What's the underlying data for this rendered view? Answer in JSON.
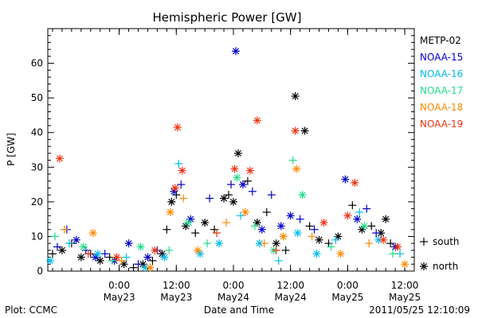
{
  "chart_data": {
    "type": "scatter",
    "title": "Hemispheric Power [GW]",
    "xlabel": "Date and Time",
    "ylabel": "P [GW]",
    "ylim": [
      0,
      70
    ],
    "yticks": [
      0,
      10,
      20,
      30,
      40,
      50,
      60
    ],
    "xlim": [
      "2011-05-22 09:00",
      "2011-05-25 14:00"
    ],
    "xticks": [
      {
        "at": "2011-05-23 00:00",
        "line1": "0:00",
        "line2": "May23"
      },
      {
        "at": "2011-05-23 12:00",
        "line1": "12:00",
        "line2": "May23"
      },
      {
        "at": "2011-05-24 00:00",
        "line1": "0:00",
        "line2": "May24"
      },
      {
        "at": "2011-05-24 12:00",
        "line1": "12:00",
        "line2": "May24"
      },
      {
        "at": "2011-05-25 00:00",
        "line1": "0:00",
        "line2": "May25"
      },
      {
        "at": "2011-05-25 12:00",
        "line1": "12:00",
        "line2": "May25"
      }
    ],
    "grid": false,
    "legend_position": "right",
    "hemisphere_markers": [
      {
        "symbol": "+",
        "label": "south"
      },
      {
        "symbol": "*",
        "label": "north"
      }
    ],
    "series": [
      {
        "name": "METP-02",
        "color": "#000000",
        "points": [
          [
            "2011-05-22 10:00",
            5,
            "+"
          ],
          [
            "2011-05-22 12:00",
            6,
            "*"
          ],
          [
            "2011-05-22 14:00",
            8,
            "+"
          ],
          [
            "2011-05-22 16:00",
            4,
            "*"
          ],
          [
            "2011-05-22 18:00",
            5,
            "+"
          ],
          [
            "2011-05-22 20:00",
            3,
            "*"
          ],
          [
            "2011-05-22 22:00",
            4,
            "+"
          ],
          [
            "2011-05-23 01:00",
            2,
            "*"
          ],
          [
            "2011-05-23 03:00",
            1,
            "+"
          ],
          [
            "2011-05-23 05:00",
            2,
            "*"
          ],
          [
            "2011-05-23 07:00",
            3,
            "+"
          ],
          [
            "2011-05-23 09:00",
            5,
            "*"
          ],
          [
            "2011-05-23 10:00",
            12,
            "+"
          ],
          [
            "2011-05-23 11:00",
            20,
            "*"
          ],
          [
            "2011-05-23 12:00",
            22,
            "+"
          ],
          [
            "2011-05-23 14:00",
            13,
            "*"
          ],
          [
            "2011-05-23 16:00",
            11,
            "+"
          ],
          [
            "2011-05-23 18:00",
            14,
            "*"
          ],
          [
            "2011-05-23 20:00",
            12,
            "+"
          ],
          [
            "2011-05-23 22:00",
            21,
            "*"
          ],
          [
            "2011-05-23 23:00",
            22,
            "+"
          ],
          [
            "2011-05-24 00:00",
            20,
            "*"
          ],
          [
            "2011-05-24 01:00",
            34,
            "*"
          ],
          [
            "2011-05-24 03:00",
            26,
            "+"
          ],
          [
            "2011-05-24 05:00",
            14,
            "*"
          ],
          [
            "2011-05-24 07:00",
            17,
            "+"
          ],
          [
            "2011-05-24 09:00",
            8,
            "*"
          ],
          [
            "2011-05-24 11:00",
            6,
            "+"
          ],
          [
            "2011-05-24 13:00",
            50.5,
            "*"
          ],
          [
            "2011-05-24 15:00",
            40.5,
            "*"
          ],
          [
            "2011-05-24 16:00",
            13,
            "+"
          ],
          [
            "2011-05-24 18:00",
            9,
            "*"
          ],
          [
            "2011-05-24 20:00",
            8,
            "+"
          ],
          [
            "2011-05-24 22:00",
            10,
            "*"
          ],
          [
            "2011-05-25 01:00",
            19,
            "+"
          ],
          [
            "2011-05-25 03:00",
            12,
            "*"
          ],
          [
            "2011-05-25 05:00",
            13,
            "+"
          ],
          [
            "2011-05-25 07:00",
            11,
            "*"
          ],
          [
            "2011-05-25 08:00",
            15,
            "*"
          ],
          [
            "2011-05-25 09:00",
            8,
            "+"
          ]
        ]
      },
      {
        "name": "NOAA-15",
        "color": "#0000cc",
        "points": [
          [
            "2011-05-22 11:00",
            7,
            "+"
          ],
          [
            "2011-05-22 13:00",
            12,
            "+"
          ],
          [
            "2011-05-22 15:00",
            9,
            "*"
          ],
          [
            "2011-05-22 17:00",
            6,
            "+"
          ],
          [
            "2011-05-22 19:00",
            4,
            "*"
          ],
          [
            "2011-05-22 21:00",
            5,
            "+"
          ],
          [
            "2011-05-22 23:00",
            3,
            "*"
          ],
          [
            "2011-05-23 02:00",
            8,
            "*"
          ],
          [
            "2011-05-23 04:00",
            2,
            "+"
          ],
          [
            "2011-05-23 06:00",
            4,
            "*"
          ],
          [
            "2011-05-23 08:00",
            6,
            "+"
          ],
          [
            "2011-05-23 11:30",
            23,
            "*"
          ],
          [
            "2011-05-23 13:00",
            25,
            "+"
          ],
          [
            "2011-05-23 15:00",
            15,
            "*"
          ],
          [
            "2011-05-23 19:00",
            21,
            "+"
          ],
          [
            "2011-05-23 23:30",
            25,
            "+"
          ],
          [
            "2011-05-24 00:30",
            63.5,
            "*"
          ],
          [
            "2011-05-24 02:00",
            25,
            "*"
          ],
          [
            "2011-05-24 04:00",
            23,
            "+"
          ],
          [
            "2011-05-24 06:00",
            12,
            "*"
          ],
          [
            "2011-05-24 08:00",
            22,
            "+"
          ],
          [
            "2011-05-24 10:00",
            13,
            "*"
          ],
          [
            "2011-05-24 12:00",
            16,
            "*"
          ],
          [
            "2011-05-24 14:00",
            15,
            "+"
          ],
          [
            "2011-05-24 17:00",
            12,
            "+"
          ],
          [
            "2011-05-24 23:30",
            26.5,
            "*"
          ],
          [
            "2011-05-25 02:00",
            15,
            "*"
          ],
          [
            "2011-05-25 04:00",
            18,
            "+"
          ],
          [
            "2011-05-25 06:00",
            11,
            "+"
          ],
          [
            "2011-05-25 10:00",
            7,
            "*"
          ]
        ]
      },
      {
        "name": "NOAA-16",
        "color": "#00bbee",
        "points": [
          [
            "2011-05-22 09:30",
            3,
            "*"
          ],
          [
            "2011-05-22 13:30",
            8,
            "+"
          ],
          [
            "2011-05-22 19:30",
            5,
            "*"
          ],
          [
            "2011-05-23 01:30",
            4,
            "+"
          ],
          [
            "2011-05-23 05:30",
            1,
            "*"
          ],
          [
            "2011-05-23 09:30",
            4,
            "*"
          ],
          [
            "2011-05-23 12:30",
            31,
            "+"
          ],
          [
            "2011-05-23 17:00",
            5,
            "*"
          ],
          [
            "2011-05-23 21:00",
            8,
            "*"
          ],
          [
            "2011-05-24 01:30",
            16,
            "+"
          ],
          [
            "2011-05-24 05:30",
            8,
            "*"
          ],
          [
            "2011-05-24 09:30",
            3,
            "+"
          ],
          [
            "2011-05-24 13:30",
            11,
            "*"
          ],
          [
            "2011-05-24 17:30",
            5,
            "*"
          ],
          [
            "2011-05-24 21:30",
            9,
            "+"
          ],
          [
            "2011-05-25 02:30",
            17,
            "+"
          ],
          [
            "2011-05-25 06:30",
            9,
            "*"
          ],
          [
            "2011-05-25 11:00",
            5,
            "+"
          ]
        ]
      },
      {
        "name": "NOAA-17",
        "color": "#22dd88",
        "points": [
          [
            "2011-05-22 10:30",
            10,
            "+"
          ],
          [
            "2011-05-22 16:30",
            7,
            "*"
          ],
          [
            "2011-05-22 22:30",
            3,
            "+"
          ],
          [
            "2011-05-23 04:30",
            7,
            "*"
          ],
          [
            "2011-05-23 10:30",
            6,
            "+"
          ],
          [
            "2011-05-23 14:30",
            14,
            "*"
          ],
          [
            "2011-05-23 18:30",
            8,
            "+"
          ],
          [
            "2011-05-24 00:45",
            27,
            "*"
          ],
          [
            "2011-05-24 04:30",
            13,
            "+"
          ],
          [
            "2011-05-24 08:30",
            6,
            "*"
          ],
          [
            "2011-05-24 12:30",
            32,
            "+"
          ],
          [
            "2011-05-24 14:30",
            22,
            "*"
          ],
          [
            "2011-05-24 20:30",
            7,
            "+"
          ],
          [
            "2011-05-25 03:30",
            13,
            "*"
          ],
          [
            "2011-05-25 09:30",
            5,
            "+"
          ]
        ]
      },
      {
        "name": "NOAA-18",
        "color": "#ff8800",
        "points": [
          [
            "2011-05-22 12:30",
            12,
            "+"
          ],
          [
            "2011-05-22 18:30",
            11,
            "*"
          ],
          [
            "2011-05-23 00:30",
            3,
            "+"
          ],
          [
            "2011-05-23 06:30",
            1,
            "*"
          ],
          [
            "2011-05-23 10:45",
            17,
            "*"
          ],
          [
            "2011-05-23 13:30",
            21,
            "+"
          ],
          [
            "2011-05-23 16:30",
            6,
            "*"
          ],
          [
            "2011-05-23 22:30",
            14,
            "+"
          ],
          [
            "2011-05-24 02:30",
            17,
            "*"
          ],
          [
            "2011-05-24 06:30",
            8,
            "+"
          ],
          [
            "2011-05-24 10:30",
            10,
            "*"
          ],
          [
            "2011-05-24 13:15",
            29.5,
            "*"
          ],
          [
            "2011-05-24 16:30",
            10,
            "+"
          ],
          [
            "2011-05-24 22:30",
            5,
            "*"
          ],
          [
            "2011-05-25 04:30",
            8,
            "+"
          ],
          [
            "2011-05-25 12:00",
            2,
            "*"
          ]
        ]
      },
      {
        "name": "NOAA-19",
        "color": "#ee3311",
        "points": [
          [
            "2011-05-22 11:30",
            32.5,
            "*"
          ],
          [
            "2011-05-22 17:30",
            5,
            "+"
          ],
          [
            "2011-05-22 23:30",
            4,
            "*"
          ],
          [
            "2011-05-23 07:30",
            6,
            "*"
          ],
          [
            "2011-05-23 12:15",
            41.5,
            "*"
          ],
          [
            "2011-05-23 13:15",
            29,
            "*"
          ],
          [
            "2011-05-23 11:45",
            24,
            "*"
          ],
          [
            "2011-05-23 20:30",
            11,
            "+"
          ],
          [
            "2011-05-24 00:15",
            29.5,
            "*"
          ],
          [
            "2011-05-24 03:30",
            29,
            "*"
          ],
          [
            "2011-05-24 05:00",
            43.5,
            "*"
          ],
          [
            "2011-05-24 09:00",
            6,
            "+"
          ],
          [
            "2011-05-24 13:00",
            40.5,
            "*"
          ],
          [
            "2011-05-24 19:00",
            14,
            "*"
          ],
          [
            "2011-05-25 00:00",
            16,
            "*"
          ],
          [
            "2011-05-25 01:30",
            25.5,
            "*"
          ],
          [
            "2011-05-25 07:30",
            9,
            "*"
          ],
          [
            "2011-05-25 10:30",
            7,
            "*"
          ]
        ]
      }
    ]
  },
  "footer": {
    "left": "Plot: CCMC",
    "right": "2011/05/25 12:10:09"
  }
}
